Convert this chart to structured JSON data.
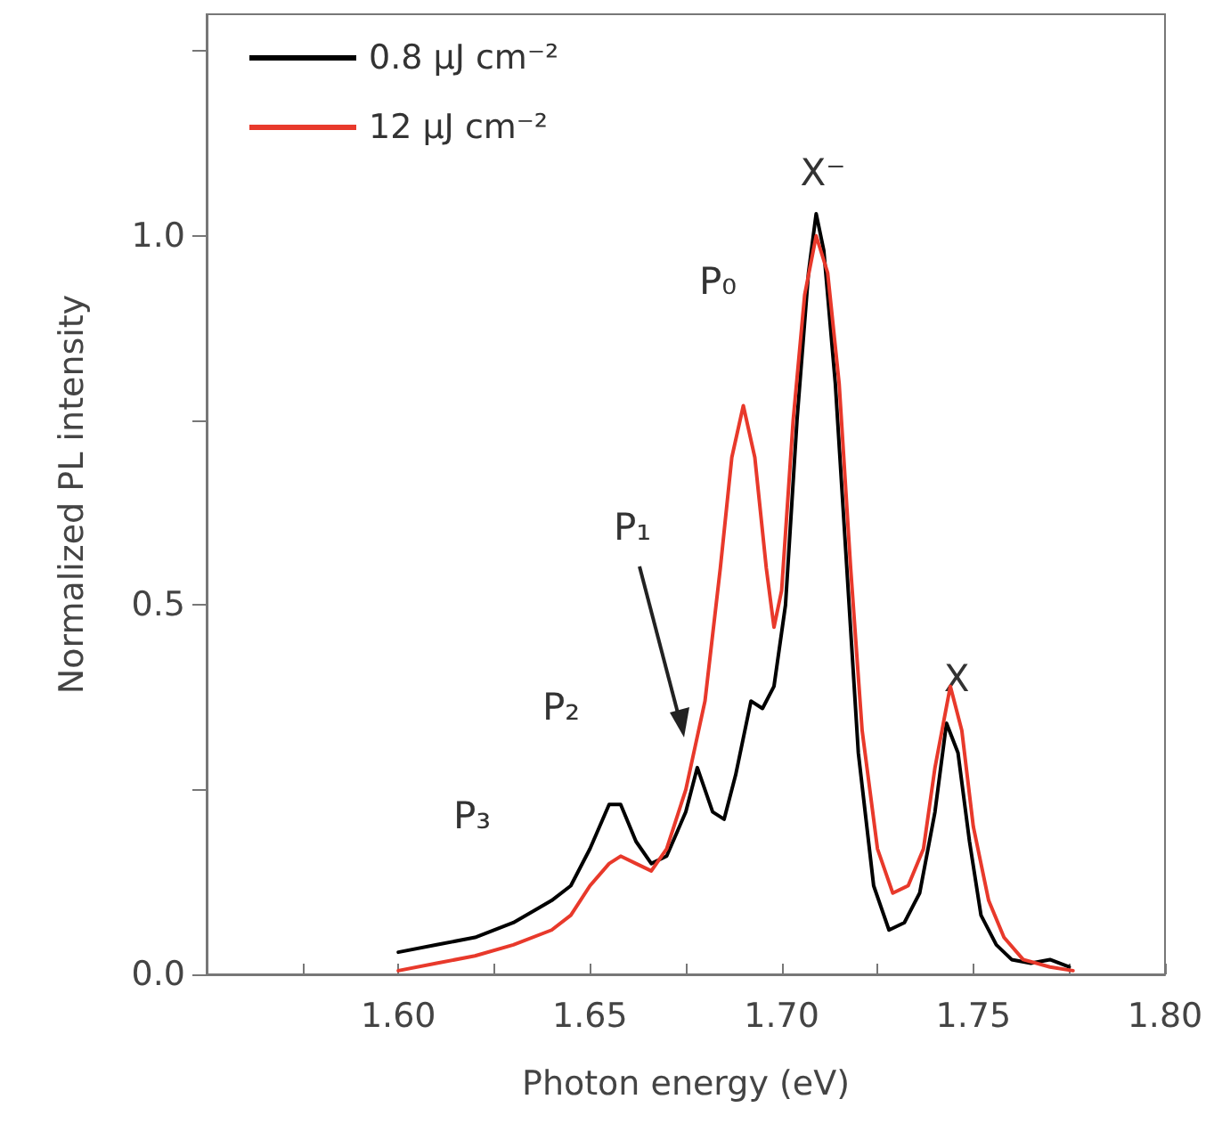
{
  "chart_data": {
    "type": "line",
    "xlabel": "Photon energy (eV)",
    "ylabel": "Normalized PL intensity",
    "xlim": [
      1.55,
      1.8
    ],
    "xticks": [
      {
        "value": 1.55,
        "label": null
      },
      {
        "value": 1.575,
        "label": null
      },
      {
        "value": 1.6,
        "label": "1.60"
      },
      {
        "value": 1.625,
        "label": null
      },
      {
        "value": 1.65,
        "label": "1.65"
      },
      {
        "value": 1.675,
        "label": null
      },
      {
        "value": 1.7,
        "label": "1.70"
      },
      {
        "value": 1.725,
        "label": null
      },
      {
        "value": 1.75,
        "label": "1.75"
      },
      {
        "value": 1.775,
        "label": null
      },
      {
        "value": 1.8,
        "label": "1.80"
      }
    ],
    "ylim": [
      0,
      1.3
    ],
    "yticks": [
      {
        "value": 0,
        "label": "0.0"
      },
      {
        "value": 0.25,
        "label": null
      },
      {
        "value": 0.5,
        "label": "0.5"
      },
      {
        "value": 0.75,
        "label": null
      },
      {
        "value": 1.0,
        "label": "1.0"
      },
      {
        "value": 1.25,
        "label": null
      }
    ],
    "legend": "top left",
    "grid": false,
    "marker": "none",
    "line_style": "solid",
    "series": [
      {
        "name": "0.8 μJ cm⁻²",
        "color": "#000000",
        "x": [
          1.6,
          1.61,
          1.62,
          1.63,
          1.64,
          1.645,
          1.65,
          1.655,
          1.658,
          1.662,
          1.666,
          1.67,
          1.675,
          1.678,
          1.682,
          1.685,
          1.688,
          1.692,
          1.695,
          1.698,
          1.701,
          1.704,
          1.707,
          1.709,
          1.711,
          1.714,
          1.717,
          1.72,
          1.724,
          1.728,
          1.732,
          1.736,
          1.74,
          1.743,
          1.746,
          1.749,
          1.752,
          1.756,
          1.76,
          1.765,
          1.77,
          1.775
        ],
        "values": [
          0.03,
          0.04,
          0.05,
          0.07,
          0.1,
          0.12,
          0.17,
          0.23,
          0.23,
          0.18,
          0.15,
          0.16,
          0.22,
          0.28,
          0.22,
          0.21,
          0.27,
          0.37,
          0.36,
          0.39,
          0.5,
          0.75,
          0.95,
          1.03,
          0.98,
          0.8,
          0.55,
          0.3,
          0.12,
          0.06,
          0.07,
          0.11,
          0.22,
          0.34,
          0.3,
          0.18,
          0.08,
          0.04,
          0.02,
          0.015,
          0.02,
          0.01
        ]
      },
      {
        "name": "12 μJ cm⁻²",
        "color": "#e8392b",
        "x": [
          1.6,
          1.61,
          1.62,
          1.63,
          1.64,
          1.645,
          1.65,
          1.655,
          1.658,
          1.662,
          1.666,
          1.67,
          1.675,
          1.68,
          1.684,
          1.687,
          1.69,
          1.693,
          1.696,
          1.698,
          1.7,
          1.703,
          1.706,
          1.709,
          1.712,
          1.715,
          1.718,
          1.721,
          1.725,
          1.729,
          1.733,
          1.737,
          1.74,
          1.744,
          1.747,
          1.75,
          1.754,
          1.758,
          1.763,
          1.77,
          1.776
        ],
        "values": [
          0.005,
          0.015,
          0.025,
          0.04,
          0.06,
          0.08,
          0.12,
          0.15,
          0.16,
          0.15,
          0.14,
          0.17,
          0.25,
          0.37,
          0.55,
          0.7,
          0.77,
          0.7,
          0.55,
          0.47,
          0.52,
          0.75,
          0.92,
          1.0,
          0.95,
          0.8,
          0.55,
          0.33,
          0.17,
          0.11,
          0.12,
          0.17,
          0.28,
          0.39,
          0.33,
          0.2,
          0.1,
          0.05,
          0.02,
          0.01,
          0.005
        ]
      }
    ],
    "annotations": [
      "X⁻",
      "P₀",
      "P₁",
      "P₂",
      "P₃",
      "X"
    ]
  }
}
